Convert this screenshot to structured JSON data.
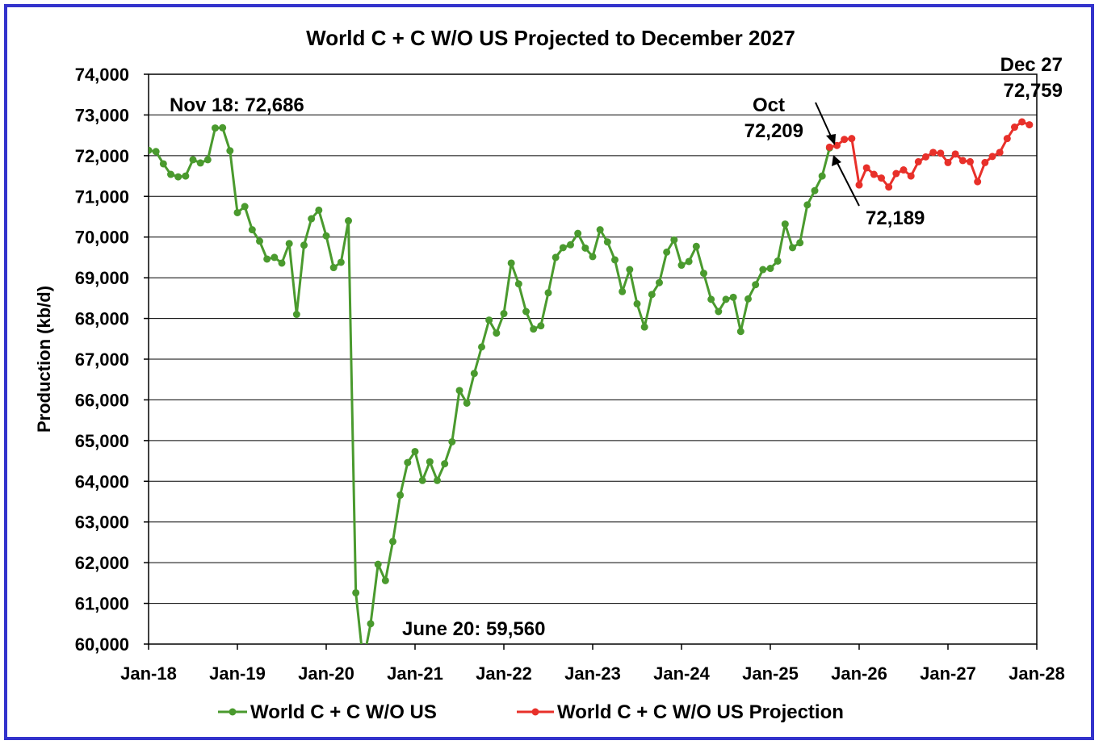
{
  "chart_data": {
    "type": "line",
    "title": "World C + C W/O US Projected to December 2027",
    "ylabel": "Production (kb/d)",
    "xlabel": "",
    "ylim": [
      60000,
      74000
    ],
    "y_ticks": [
      60000,
      61000,
      62000,
      63000,
      64000,
      65000,
      66000,
      67000,
      68000,
      69000,
      70000,
      71000,
      72000,
      73000,
      74000
    ],
    "y_tick_labels": [
      "60,000",
      "61,000",
      "62,000",
      "63,000",
      "64,000",
      "65,000",
      "66,000",
      "67,000",
      "68,000",
      "69,000",
      "70,000",
      "71,000",
      "72,000",
      "73,000",
      "74,000"
    ],
    "x_tick_labels": [
      "Jan-18",
      "Jan-19",
      "Jan-20",
      "Jan-21",
      "Jan-22",
      "Jan-23",
      "Jan-24",
      "Jan-25",
      "Jan-26",
      "Jan-27",
      "Jan-28"
    ],
    "x_tick_months": [
      0,
      12,
      24,
      36,
      48,
      60,
      72,
      84,
      96,
      108,
      120
    ],
    "x_range_months": [
      0,
      120
    ],
    "grid": "horizontal",
    "legend_position": "bottom",
    "series": [
      {
        "name": "World C + C W/O US",
        "color": "#4a9a2e",
        "start_month": 0,
        "values": [
          72130,
          72100,
          71800,
          71540,
          71480,
          71500,
          71900,
          71820,
          71900,
          72680,
          72686,
          72120,
          70600,
          70750,
          70180,
          69900,
          69460,
          69500,
          69360,
          69840,
          68100,
          69800,
          70450,
          70660,
          70030,
          69250,
          69380,
          70400,
          61260,
          59560,
          60500,
          61960,
          61560,
          62520,
          63660,
          64460,
          64730,
          64020,
          64480,
          64020,
          64430,
          64970,
          66230,
          65920,
          66650,
          67300,
          67960,
          67640,
          68120,
          69360,
          68850,
          68170,
          67740,
          67820,
          68630,
          69500,
          69740,
          69810,
          70090,
          69730,
          69520,
          70180,
          69880,
          69440,
          68660,
          69200,
          68360,
          67790,
          68590,
          68880,
          69630,
          69930,
          69310,
          69400,
          69770,
          69110,
          68470,
          68170,
          68470,
          68520,
          67680,
          68480,
          68830,
          69200,
          69230,
          69410,
          70320,
          69740,
          69860,
          70790,
          71140,
          71500,
          72189
        ]
      },
      {
        "name": "World C + C W/O US Projection",
        "color": "#e8302a",
        "start_month": 92,
        "values": [
          72209,
          72250,
          72400,
          72420,
          71280,
          71700,
          71540,
          71450,
          71230,
          71560,
          71650,
          71500,
          71850,
          71970,
          72080,
          72060,
          71830,
          72040,
          71880,
          71850,
          71360,
          71830,
          71980,
          72080,
          72420,
          72700,
          72830,
          72759
        ]
      }
    ],
    "annotations": [
      {
        "text": "Nov 18: 72,686"
      },
      {
        "text": "June 20: 59,560"
      },
      {
        "text": "Oct"
      },
      {
        "text": "72,209"
      },
      {
        "text": "72,189"
      },
      {
        "text": "Dec 27"
      },
      {
        "text": "72,759"
      }
    ]
  }
}
